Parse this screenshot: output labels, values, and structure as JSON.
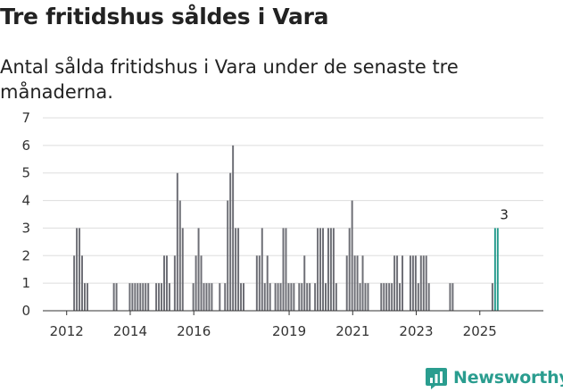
{
  "title": "Tre fritidshus såldes i Vara",
  "subtitle": "Antal sålda fritidshus i Vara under de senaste tre månaderna.",
  "brand": {
    "name": "Newsworthy",
    "logo_icon": "newsworthy-logo-icon",
    "color": "#2a9d8f"
  },
  "chart_data": {
    "type": "bar",
    "title": "",
    "xlabel": "",
    "ylabel": "",
    "ylim": [
      0,
      7
    ],
    "yticks": [
      0,
      1,
      2,
      3,
      4,
      5,
      6,
      7
    ],
    "xlim": [
      2011.25,
      2027.0
    ],
    "xticks": [
      {
        "value": 2012,
        "label": "2012"
      },
      {
        "value": 2014,
        "label": "2014"
      },
      {
        "value": 2016,
        "label": "2016"
      },
      {
        "value": 2019,
        "label": "2019"
      },
      {
        "value": 2021,
        "label": "2021"
      },
      {
        "value": 2023,
        "label": "2023"
      },
      {
        "value": 2025,
        "label": "2025"
      }
    ],
    "bar_color": "#6d6e75",
    "highlight_color": "#2a9d8f",
    "grid": true,
    "annotations": [
      {
        "x": 2025.77,
        "value": 3,
        "label": "3"
      }
    ],
    "series": [
      {
        "name": "Antal sålda fritidshus",
        "start": 2012.0,
        "step": 0.0833,
        "values": [
          0,
          0,
          0,
          2,
          3,
          3,
          2,
          1,
          1,
          0,
          0,
          0,
          0,
          0,
          0,
          0,
          0,
          0,
          1,
          1,
          0,
          0,
          0,
          0,
          1,
          1,
          1,
          1,
          1,
          1,
          1,
          1,
          0,
          0,
          1,
          1,
          1,
          2,
          2,
          1,
          0,
          2,
          5,
          4,
          3,
          0,
          0,
          0,
          1,
          2,
          3,
          2,
          1,
          1,
          1,
          1,
          0,
          0,
          1,
          0,
          1,
          4,
          5,
          6,
          3,
          3,
          1,
          1,
          0,
          0,
          0,
          0,
          2,
          2,
          3,
          1,
          2,
          1,
          0,
          1,
          1,
          1,
          3,
          3,
          1,
          1,
          1,
          0,
          1,
          1,
          2,
          1,
          1,
          0,
          1,
          3,
          3,
          3,
          1,
          3,
          3,
          3,
          1,
          0,
          0,
          0,
          2,
          3,
          4,
          2,
          2,
          1,
          2,
          1,
          1,
          0,
          0,
          0,
          0,
          1,
          1,
          1,
          1,
          1,
          2,
          2,
          1,
          2,
          0,
          0,
          2,
          2,
          2,
          1,
          2,
          2,
          2,
          1,
          0,
          0,
          0,
          0,
          0,
          0,
          0,
          1,
          1,
          0,
          0,
          0,
          0,
          0,
          0,
          0,
          0,
          0,
          0,
          0,
          0,
          0,
          0,
          1,
          3,
          3
        ]
      }
    ]
  }
}
